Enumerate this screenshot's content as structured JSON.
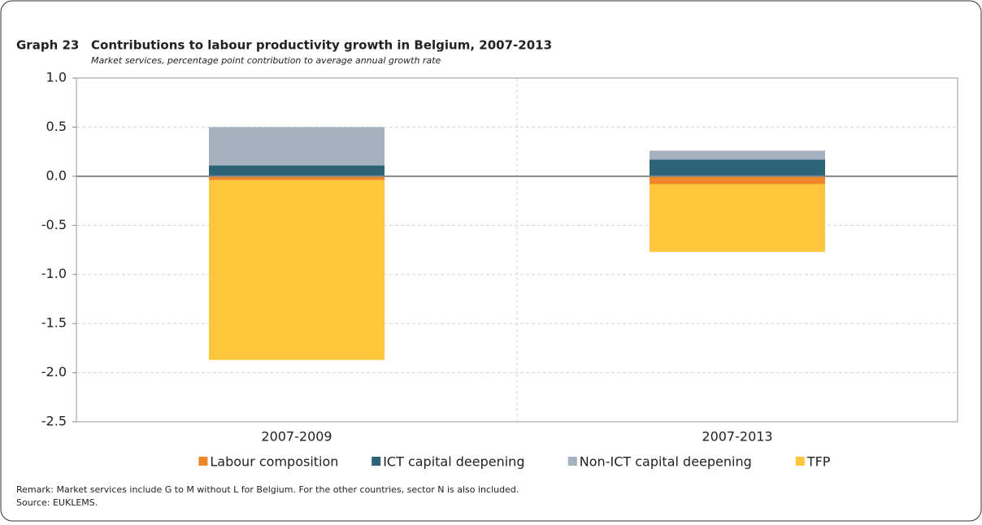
{
  "chart_data": {
    "type": "stacked_bar",
    "label": "Graph 23",
    "title": "Contributions to labour productivity growth in Belgium, 2007-2013",
    "subtitle": "Market services, percentage point contribution to average annual growth rate",
    "categories": [
      "2007-2009",
      "2007-2013"
    ],
    "series": [
      {
        "name": "Labour composition",
        "color": "#f0862a",
        "values": [
          -0.04,
          -0.08
        ]
      },
      {
        "name": "ICT capital deepening",
        "color": "#2c6377",
        "values": [
          0.11,
          0.17
        ]
      },
      {
        "name": "Non-ICT capital deepening",
        "color": "#a6b1c0",
        "values": [
          0.39,
          0.09
        ]
      },
      {
        "name": "TFP",
        "color": "#fec63d",
        "values": [
          -1.83,
          -0.69
        ]
      }
    ],
    "ylim": [
      -2.5,
      1.0
    ],
    "yticks": [
      {
        "value": -2.5,
        "label": "-2.5"
      },
      {
        "value": -2,
        "label": "-2.0"
      },
      -1.5,
      {
        "value": -1,
        "label": "-1.0"
      },
      -0.5,
      {
        "value": 0,
        "label": "0.0"
      },
      0.5,
      {
        "value": 1,
        "label": "1.0"
      }
    ],
    "grid": true,
    "legend": "bottom",
    "notes": [
      "Remark: Market services include G to M without L for Belgium. For the other countries, sector N is also included.",
      "Source: EUKLEMS."
    ]
  }
}
